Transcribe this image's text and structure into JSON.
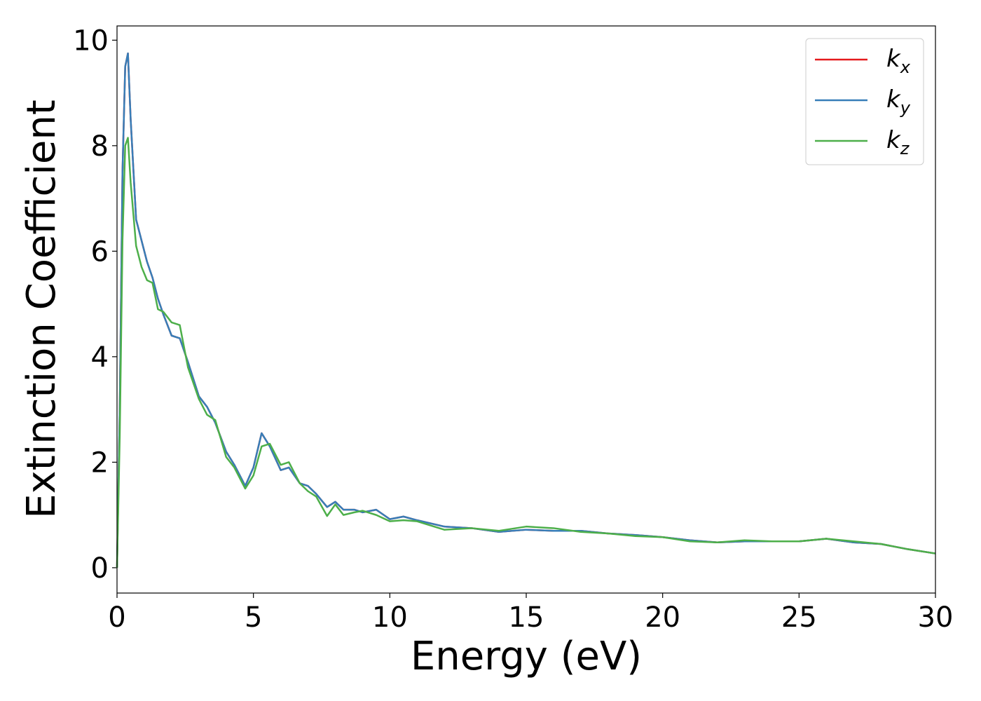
{
  "chart_data": {
    "type": "line",
    "xlabel": "Energy (eV)",
    "ylabel": "Extinction Coefficient",
    "x": [
      0,
      0.1,
      0.2,
      0.3,
      0.4,
      0.5,
      0.7,
      0.9,
      1.1,
      1.3,
      1.5,
      1.7,
      2,
      2.3,
      2.6,
      3,
      3.3,
      3.6,
      4,
      4.3,
      4.7,
      5,
      5.3,
      5.6,
      6,
      6.3,
      6.7,
      7,
      7.3,
      7.7,
      8,
      8.3,
      8.7,
      9,
      9.5,
      10,
      10.5,
      11,
      12,
      13,
      14,
      15,
      16,
      17,
      18,
      19,
      20,
      21,
      22,
      23,
      24,
      25,
      26,
      27,
      28,
      29,
      30
    ],
    "series": [
      {
        "name": "kx",
        "color": "#e41a1c",
        "values": [
          0,
          3.0,
          7.5,
          9.5,
          9.75,
          8.5,
          6.6,
          6.2,
          5.8,
          5.5,
          5.1,
          4.8,
          4.4,
          4.35,
          3.9,
          3.25,
          3.05,
          2.75,
          2.2,
          1.95,
          1.55,
          1.9,
          2.55,
          2.3,
          1.85,
          1.9,
          1.6,
          1.55,
          1.4,
          1.15,
          1.25,
          1.1,
          1.1,
          1.05,
          1.1,
          0.92,
          0.97,
          0.9,
          0.78,
          0.75,
          0.68,
          0.72,
          0.7,
          0.7,
          0.65,
          0.62,
          0.58,
          0.52,
          0.48,
          0.5,
          0.5,
          0.5,
          0.55,
          0.48,
          0.45,
          0.35,
          0.27
        ]
      },
      {
        "name": "ky",
        "color": "#377eb8",
        "values": [
          0,
          3.0,
          7.5,
          9.5,
          9.75,
          8.5,
          6.6,
          6.2,
          5.8,
          5.5,
          5.1,
          4.8,
          4.4,
          4.35,
          3.9,
          3.25,
          3.05,
          2.75,
          2.2,
          1.95,
          1.55,
          1.9,
          2.55,
          2.3,
          1.85,
          1.9,
          1.6,
          1.55,
          1.4,
          1.15,
          1.25,
          1.1,
          1.1,
          1.05,
          1.1,
          0.92,
          0.97,
          0.9,
          0.78,
          0.75,
          0.68,
          0.72,
          0.7,
          0.7,
          0.65,
          0.62,
          0.58,
          0.52,
          0.48,
          0.5,
          0.5,
          0.5,
          0.55,
          0.48,
          0.45,
          0.35,
          0.27
        ]
      },
      {
        "name": "kz",
        "color": "#4daf4a",
        "values": [
          0,
          2.5,
          6.2,
          8.0,
          8.15,
          7.3,
          6.1,
          5.7,
          5.45,
          5.4,
          4.9,
          4.85,
          4.65,
          4.6,
          3.8,
          3.2,
          2.9,
          2.8,
          2.1,
          1.9,
          1.5,
          1.75,
          2.3,
          2.35,
          1.95,
          2.0,
          1.6,
          1.45,
          1.35,
          0.98,
          1.2,
          1.0,
          1.05,
          1.08,
          1.0,
          0.88,
          0.9,
          0.88,
          0.72,
          0.75,
          0.7,
          0.78,
          0.75,
          0.68,
          0.65,
          0.6,
          0.58,
          0.5,
          0.48,
          0.52,
          0.5,
          0.5,
          0.55,
          0.5,
          0.45,
          0.35,
          0.27
        ]
      }
    ],
    "xlim": [
      0,
      30
    ],
    "ylim": [
      -0.48,
      10.27
    ],
    "xticks": [
      0,
      5,
      10,
      15,
      20,
      25,
      30
    ],
    "yticks": [
      0,
      2,
      4,
      6,
      8,
      10
    ],
    "legend": "upper right",
    "grid": false
  }
}
